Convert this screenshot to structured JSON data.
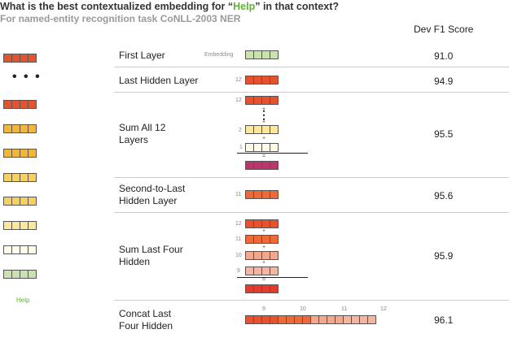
{
  "title": {
    "prefix": "What is the best contextualized embedding for “",
    "highlight": "Help",
    "suffix": "” in that context?"
  },
  "subtitle": "For named-entity recognition task CoNLL-2003 NER",
  "column_header": "Dev F1 Score",
  "sidebar": {
    "dots": "• • •",
    "word_label": "Help"
  },
  "rows": [
    {
      "label": "First Layer",
      "score": "91.0"
    },
    {
      "label": "Last Hidden Layer",
      "score": "94.9"
    },
    {
      "label": "Sum All 12\nLayers",
      "score": "95.5"
    },
    {
      "label": "Second-to-Last\nHidden Layer",
      "score": "95.6"
    },
    {
      "label": "Sum Last Four\nHidden",
      "score": "95.9"
    },
    {
      "label": "Concat Last\nFour Hidden",
      "score": "96.1"
    }
  ],
  "diagram_labels": {
    "embedding": "Embedding",
    "n12": "12",
    "n11": "11",
    "n10": "10",
    "n9": "9",
    "n2": "2",
    "n1": "1",
    "vdots": "⋮",
    "plus": "+",
    "equals": "="
  },
  "colors": {
    "layer12": "#e5532e",
    "layer11": "#ea6a3a",
    "layer10": "#f0a88f",
    "layer9": "#f2b6a3",
    "yellow_dark": "#f5b537",
    "yellow_mid": "#f8d060",
    "yellow_light": "#fce89a",
    "pale": "#fdf6c8",
    "very_pale": "#fefbe9",
    "embedding": "#c9e2ae",
    "sum_all": "#b8386d",
    "sum_four": "#e23c30",
    "accent_green": "#5ab52e"
  }
}
